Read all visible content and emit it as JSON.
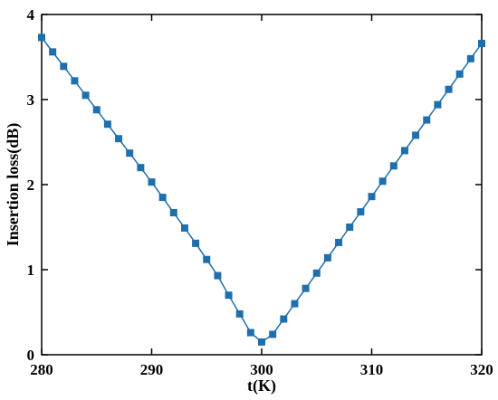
{
  "chart_data": {
    "type": "line",
    "xlabel": "t(K)",
    "ylabel": "Insertion loss(dB)",
    "x": [
      280,
      281,
      282,
      283,
      284,
      285,
      286,
      287,
      288,
      289,
      290,
      291,
      292,
      293,
      294,
      295,
      296,
      297,
      298,
      299,
      300,
      301,
      302,
      303,
      304,
      305,
      306,
      307,
      308,
      309,
      310,
      311,
      312,
      313,
      314,
      315,
      316,
      317,
      318,
      319,
      320
    ],
    "series": [
      {
        "name": "Insertion loss",
        "color": "#1f6fad",
        "values": [
          3.73,
          3.56,
          3.39,
          3.22,
          3.05,
          2.88,
          2.71,
          2.54,
          2.37,
          2.2,
          2.03,
          1.85,
          1.67,
          1.49,
          1.31,
          1.12,
          0.93,
          0.7,
          0.48,
          0.26,
          0.15,
          0.24,
          0.42,
          0.6,
          0.78,
          0.96,
          1.14,
          1.32,
          1.5,
          1.68,
          1.86,
          2.04,
          2.22,
          2.4,
          2.58,
          2.76,
          2.94,
          3.12,
          3.3,
          3.48,
          3.66
        ]
      }
    ],
    "xlim": [
      280,
      320
    ],
    "xticks": [
      280,
      290,
      300,
      310,
      320
    ],
    "ylim": [
      0,
      4
    ],
    "yticks": [
      0,
      1,
      2,
      3,
      4
    ]
  }
}
